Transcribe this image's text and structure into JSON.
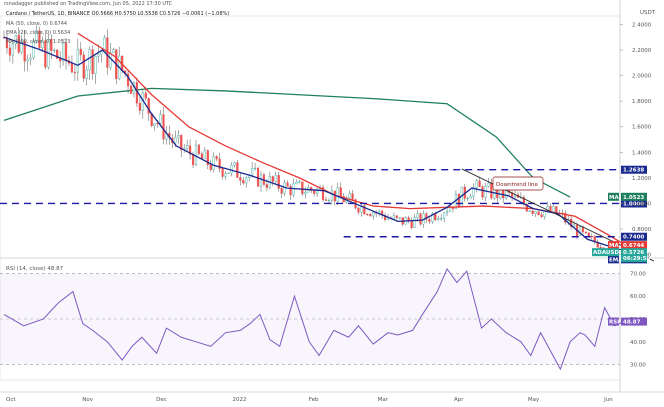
{
  "header": {
    "published": "rsnadagger published on TradingView.com, Jun 05, 2022 17:30 UTC",
    "symbol_line": "Cardano / TetherUS, 1D, BINANCE O0.5666 H0.5750 L0.5538 C0.5726 −0.0061 (−1.08%)",
    "ma50": "MA (50, close, 0) 0.6744",
    "ema20": "EMA (20, close, 0) 0.5634",
    "ma200": "MA (200, close, 0) 1.0523"
  },
  "colors": {
    "up": "#26a69a",
    "down": "#ef5350",
    "ema20": "#1a2a8e",
    "ma50": "#e53935",
    "ma200": "#1e7f5c",
    "rsi": "#7e57c2",
    "dash": "#1a1aa6",
    "candle": "#555555"
  },
  "chart_data": [
    {
      "type": "candlestick",
      "title": "Cardano / TetherUS, 1D, BINANCE",
      "y_axis_label": "USDT",
      "y_ticks": [
        "2.4000",
        "2.2000",
        "2.0000",
        "1.8000",
        "1.6000",
        "1.4000",
        "1.2000",
        "1.0000",
        "0.8000",
        "0.6000"
      ],
      "ylim": [
        0.48,
        2.45
      ],
      "x_ticks": [
        "Oct",
        "Nov",
        "Dec",
        "2022",
        "Feb",
        "Mar",
        "Apr",
        "May",
        "Jun"
      ],
      "x_tick_days": [
        0,
        31,
        61,
        92,
        123,
        151,
        182,
        212,
        243
      ],
      "x_days_span": [
        0,
        247
      ],
      "horizontal_levels": [
        {
          "value": 1.2638,
          "label": "1.2638"
        },
        {
          "value": 1.0,
          "label": "1.0000"
        },
        {
          "value": 0.74,
          "label": "0.7400"
        }
      ],
      "trendline": {
        "label": "Downtrend line",
        "points": [
          [
            186,
            1.27
          ],
          [
            264,
            0.55
          ]
        ]
      },
      "series": [
        {
          "name": "MA (200, close, 0)",
          "value_label": "MA",
          "last": "1.0523",
          "x": [
            0,
            30,
            60,
            90,
            120,
            150,
            180,
            200,
            215,
            230
          ],
          "values": [
            1.65,
            1.84,
            1.9,
            1.88,
            1.85,
            1.82,
            1.78,
            1.52,
            1.2,
            1.05
          ]
        },
        {
          "name": "MA (50, close, 0)",
          "value_label": "MA",
          "last": "0.6744",
          "x": [
            30,
            45,
            60,
            75,
            90,
            105,
            120,
            135,
            150,
            165,
            180,
            195,
            215,
            232,
            245,
            252
          ],
          "values": [
            2.33,
            2.15,
            1.85,
            1.6,
            1.45,
            1.32,
            1.2,
            1.06,
            0.98,
            0.96,
            0.97,
            0.98,
            0.96,
            0.9,
            0.76,
            0.68
          ]
        },
        {
          "name": "EMA (20, close, 0)",
          "value_label": "EMA",
          "last": "0.5634",
          "x": [
            0,
            15,
            30,
            40,
            50,
            60,
            70,
            85,
            100,
            115,
            130,
            145,
            160,
            170,
            180,
            190,
            205,
            215,
            225,
            237,
            250,
            262
          ],
          "values": [
            2.3,
            2.2,
            2.08,
            2.2,
            2.0,
            1.7,
            1.45,
            1.3,
            1.22,
            1.12,
            1.1,
            0.98,
            0.86,
            0.87,
            0.97,
            1.12,
            1.06,
            0.96,
            0.92,
            0.72,
            0.64,
            0.58
          ]
        }
      ],
      "last_price": "0.5726",
      "last_price_label": "ADAUSDT",
      "countdown": "06:29:59"
    },
    {
      "type": "line",
      "title": "RSI (14, close) 48.87",
      "y_ticks": [
        "70.00",
        "60.00",
        "50.00",
        "40.00",
        "30.00"
      ],
      "ylim": [
        25,
        75
      ],
      "reference_lines": [
        70,
        30
      ],
      "series": [
        {
          "name": "RSI",
          "last": "48.87",
          "x": [
            0,
            8,
            16,
            22,
            28,
            32,
            36,
            42,
            48,
            52,
            56,
            62,
            66,
            72,
            78,
            84,
            90,
            96,
            100,
            104,
            108,
            112,
            118,
            124,
            128,
            134,
            140,
            144,
            150,
            156,
            160,
            166,
            170,
            176,
            180,
            184,
            188,
            194,
            198,
            204,
            210,
            214,
            218,
            222,
            226,
            230,
            234,
            236,
            240,
            244,
            248,
            252
          ],
          "values": [
            52,
            47,
            50,
            57,
            62,
            48,
            45,
            40,
            32,
            38,
            42,
            35,
            46,
            42,
            40,
            38,
            44,
            45,
            48,
            52,
            41,
            38,
            60,
            40,
            34,
            45,
            42,
            47,
            39,
            44,
            43,
            45,
            52,
            62,
            72,
            66,
            71,
            46,
            50,
            44,
            40,
            34,
            44,
            36,
            28,
            40,
            44,
            43,
            38,
            55,
            47,
            49
          ]
        }
      ]
    }
  ]
}
